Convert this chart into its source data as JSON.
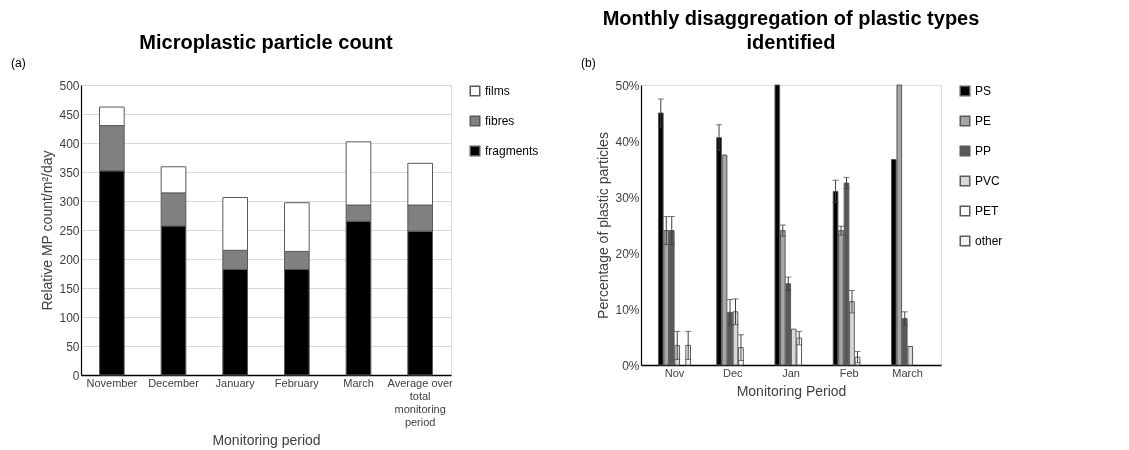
{
  "chart_data": [
    {
      "type": "bar",
      "title": "Microplastic particle count",
      "xlabel": "Monitoring period",
      "ylabel": "Relative MP count/m²/day",
      "annotations": [
        "(a)"
      ],
      "categories": [
        "November",
        "December",
        "January",
        "February",
        "March",
        "Average over total monitoring period"
      ],
      "stacked": true,
      "ylim": [
        0,
        500
      ],
      "yticks": [
        0,
        50,
        100,
        150,
        200,
        250,
        300,
        350,
        400,
        450,
        500
      ],
      "grid": "y",
      "legend": "right",
      "series": [
        {
          "name": "fragments",
          "color": "#000000",
          "values": [
            352,
            257,
            182,
            182,
            265,
            248
          ]
        },
        {
          "name": "fibres",
          "color": "#808080",
          "values": [
            78,
            57,
            33,
            31,
            28,
            45
          ]
        },
        {
          "name": "films",
          "color": "#ffffff",
          "values": [
            32,
            45,
            91,
            84,
            109,
            72
          ]
        }
      ]
    },
    {
      "type": "bar",
      "title": "Monthly disaggregation of plastic types identified",
      "xlabel": "Monitoring Period",
      "ylabel": "Percentage of plastic particles",
      "annotations": [
        "(b)"
      ],
      "categories": [
        "Nov",
        "Dec",
        "Jan",
        "Feb",
        "March"
      ],
      "ylim": [
        0,
        50
      ],
      "yticks": [
        {
          "value": 0,
          "label": "0%"
        },
        {
          "value": 10,
          "label": "10%"
        },
        {
          "value": 20,
          "label": "20%"
        },
        {
          "value": 30,
          "label": "30%"
        },
        {
          "value": 40,
          "label": "40%"
        },
        {
          "value": 50,
          "label": "50%"
        }
      ],
      "legend": "right",
      "series": [
        {
          "name": "PS",
          "color": "#000000",
          "values": [
            45,
            40.6,
            50,
            31,
            36.7
          ],
          "errors": [
            2.5,
            2.3,
            null,
            2,
            null
          ]
        },
        {
          "name": "PE",
          "color": "#a6a6a6",
          "values": [
            24,
            37.5,
            24,
            24,
            50
          ],
          "errors": [
            2.5,
            null,
            1,
            0.8,
            null
          ]
        },
        {
          "name": "PP",
          "color": "#595959",
          "values": [
            24,
            9.4,
            14.5,
            32.5,
            8.3
          ],
          "errors": [
            2.5,
            2.3,
            1.2,
            1,
            1.2
          ]
        },
        {
          "name": "PVC",
          "color": "#d9d9d9",
          "values": [
            3.5,
            9.5,
            6.4,
            11.3,
            3.3
          ],
          "errors": [
            2.5,
            2.3,
            null,
            2,
            null
          ]
        },
        {
          "name": "PET",
          "color": "#ffffff",
          "values": [
            null,
            3.1,
            4.8,
            1.4,
            null
          ],
          "errors": [
            null,
            2.3,
            1.2,
            1,
            null
          ]
        },
        {
          "name": "other",
          "color": "#f2f2f2",
          "values": [
            3.5,
            null,
            null,
            null,
            null
          ],
          "errors": [
            2.5,
            null,
            null,
            null,
            null
          ]
        }
      ]
    }
  ]
}
